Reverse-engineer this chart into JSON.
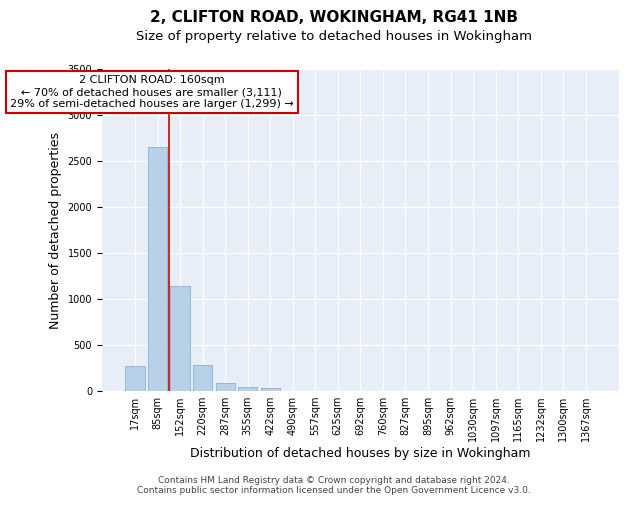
{
  "title": "2, CLIFTON ROAD, WOKINGHAM, RG41 1NB",
  "subtitle": "Size of property relative to detached houses in Wokingham",
  "xlabel": "Distribution of detached houses by size in Wokingham",
  "ylabel": "Number of detached properties",
  "footer_line1": "Contains HM Land Registry data © Crown copyright and database right 2024.",
  "footer_line2": "Contains public sector information licensed under the Open Government Licence v3.0.",
  "categories": [
    "17sqm",
    "85sqm",
    "152sqm",
    "220sqm",
    "287sqm",
    "355sqm",
    "422sqm",
    "490sqm",
    "557sqm",
    "625sqm",
    "692sqm",
    "760sqm",
    "827sqm",
    "895sqm",
    "962sqm",
    "1030sqm",
    "1097sqm",
    "1165sqm",
    "1232sqm",
    "1300sqm",
    "1367sqm"
  ],
  "values": [
    270,
    2650,
    1140,
    280,
    90,
    40,
    30,
    0,
    0,
    0,
    0,
    0,
    0,
    0,
    0,
    0,
    0,
    0,
    0,
    0,
    0
  ],
  "bar_color": "#b8d0e8",
  "bar_edge_color": "#8ab4d4",
  "bg_color": "#e8eef8",
  "grid_color": "#ffffff",
  "annotation_line1": "2 CLIFTON ROAD: 160sqm",
  "annotation_line2": "← 70% of detached houses are smaller (3,111)",
  "annotation_line3": "29% of semi-detached houses are larger (1,299) →",
  "annotation_box_edgecolor": "#cc0000",
  "red_line_x": 1.5,
  "ylim": [
    0,
    3500
  ],
  "yticks": [
    0,
    500,
    1000,
    1500,
    2000,
    2500,
    3000,
    3500
  ],
  "title_fontsize": 11,
  "subtitle_fontsize": 9.5,
  "ylabel_fontsize": 9,
  "xlabel_fontsize": 9,
  "tick_fontsize": 7,
  "footer_fontsize": 6.5,
  "annot_fontsize": 8
}
